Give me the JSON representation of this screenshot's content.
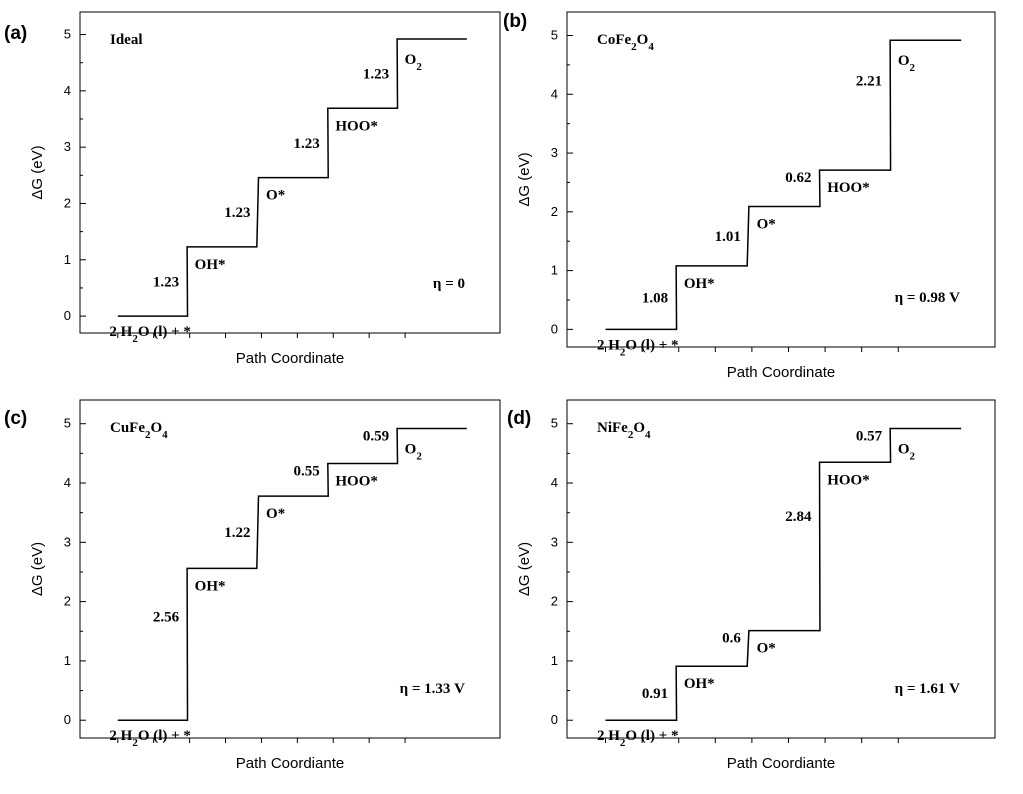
{
  "chart_data": [
    {
      "type": "line",
      "panel_label": "(a)",
      "title": "Ideal",
      "xlabel": "Path Coordinate",
      "ylabel": "ΔG (eV)",
      "ylim": [
        -0.3,
        5.4
      ],
      "yticks": [
        "0",
        "1",
        "2",
        "3",
        "4",
        "5"
      ],
      "levels": [
        0,
        1.23,
        2.46,
        3.69,
        4.92
      ],
      "species": [
        {
          "text": "2 H",
          "sub": "2",
          "tail": "O (l) + *"
        },
        {
          "text": "OH*",
          "sub": "",
          "tail": ""
        },
        {
          "text": "O*",
          "sub": "",
          "tail": ""
        },
        {
          "text": "HOO*",
          "sub": "",
          "tail": ""
        },
        {
          "text": "O",
          "sub": "2",
          "tail": ""
        }
      ],
      "step_labels": [
        "1.23",
        "1.23",
        "1.23",
        "1.23"
      ],
      "eta_label": "η = 0"
    },
    {
      "type": "line",
      "panel_label": "(b)",
      "title": "CoFe2O4",
      "title_parts": {
        "a": "CoFe",
        "s1": "2",
        "b": "O",
        "s2": "4"
      },
      "xlabel": "Path Coordinate",
      "ylabel": "ΔG (eV)",
      "ylim": [
        -0.3,
        5.4
      ],
      "yticks": [
        "0",
        "1",
        "2",
        "3",
        "4",
        "5"
      ],
      "levels": [
        0,
        1.08,
        2.09,
        2.71,
        4.92
      ],
      "species": [
        {
          "text": "2 H",
          "sub": "2",
          "tail": "O (l) + *"
        },
        {
          "text": "OH*",
          "sub": "",
          "tail": ""
        },
        {
          "text": "O*",
          "sub": "",
          "tail": ""
        },
        {
          "text": "HOO*",
          "sub": "",
          "tail": ""
        },
        {
          "text": "O",
          "sub": "2",
          "tail": ""
        }
      ],
      "step_labels": [
        "1.08",
        "1.01",
        "0.62",
        "2.21"
      ],
      "eta_label": "η = 0.98 V"
    },
    {
      "type": "line",
      "panel_label": "(c)",
      "title": "CuFe2O4",
      "title_parts": {
        "a": "CuFe",
        "s1": "2",
        "b": "O",
        "s2": "4"
      },
      "xlabel": "Path Coordiante",
      "ylabel": "ΔG (eV)",
      "ylim": [
        -0.3,
        5.4
      ],
      "yticks": [
        "0",
        "1",
        "2",
        "3",
        "4",
        "5"
      ],
      "levels": [
        0,
        2.56,
        3.78,
        4.33,
        4.92
      ],
      "species": [
        {
          "text": "2 H",
          "sub": "2",
          "tail": "O (l) + *"
        },
        {
          "text": "OH*",
          "sub": "",
          "tail": ""
        },
        {
          "text": "O*",
          "sub": "",
          "tail": ""
        },
        {
          "text": "HOO*",
          "sub": "",
          "tail": ""
        },
        {
          "text": "O",
          "sub": "2",
          "tail": ""
        }
      ],
      "step_labels": [
        "2.56",
        "1.22",
        "0.55",
        "0.59"
      ],
      "eta_label": "η = 1.33 V"
    },
    {
      "type": "line",
      "panel_label": "(d)",
      "title": "NiFe2O4",
      "title_parts": {
        "a": "NiFe",
        "s1": "2",
        "b": "O",
        "s2": "4"
      },
      "xlabel": "Path Coordiante",
      "ylabel": "ΔG (eV)",
      "ylim": [
        -0.3,
        5.4
      ],
      "yticks": [
        "0",
        "1",
        "2",
        "3",
        "4",
        "5"
      ],
      "levels": [
        0,
        0.91,
        1.51,
        4.35,
        4.92
      ],
      "species": [
        {
          "text": "2 H",
          "sub": "2",
          "tail": "O (l) + *"
        },
        {
          "text": "OH*",
          "sub": "",
          "tail": ""
        },
        {
          "text": "O*",
          "sub": "",
          "tail": ""
        },
        {
          "text": "HOO*",
          "sub": "",
          "tail": ""
        },
        {
          "text": "O",
          "sub": "2",
          "tail": ""
        }
      ],
      "step_labels": [
        "0.91",
        "0.6",
        "2.84",
        "0.57"
      ],
      "eta_label": "η = 1.61 V"
    }
  ]
}
